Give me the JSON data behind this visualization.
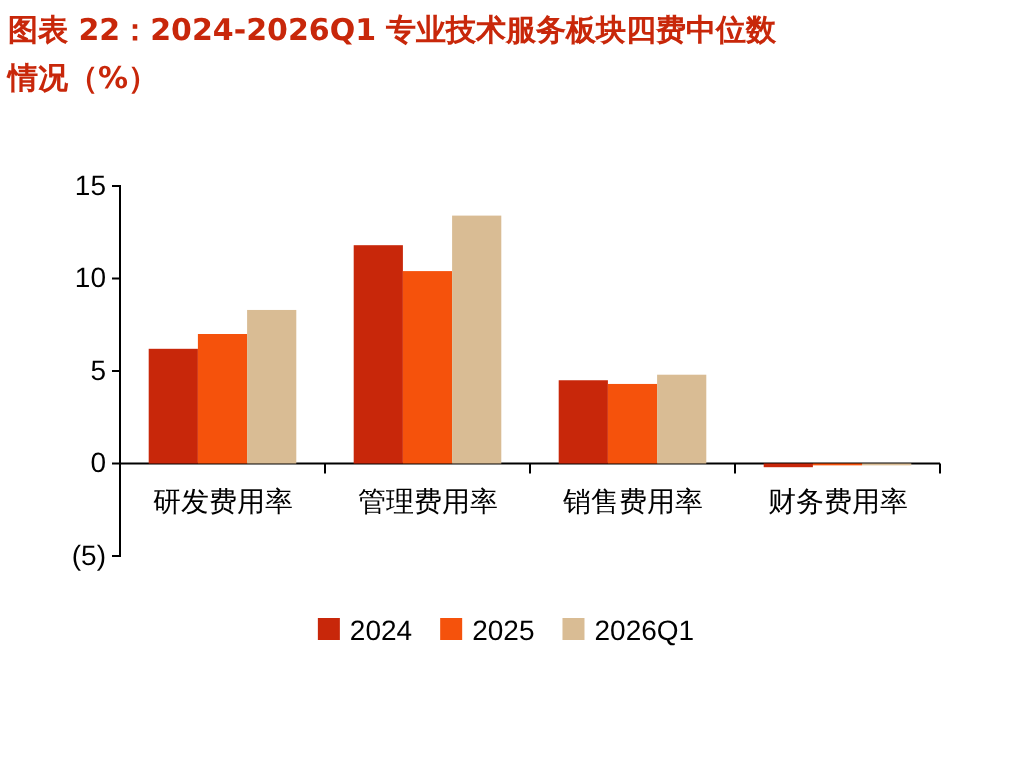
{
  "chart_data": {
    "type": "bar",
    "title": "图表 22：2024-2026Q1 专业技术服务板块四费中位数情况（%）",
    "categories": [
      "研发费用率",
      "管理费用率",
      "销售费用率",
      "财务费用率"
    ],
    "series": [
      {
        "name": "2024",
        "color": "#c8270a",
        "values": [
          6.2,
          11.8,
          4.5,
          -0.2
        ]
      },
      {
        "name": "2025",
        "color": "#f5520c",
        "values": [
          7.0,
          10.4,
          4.3,
          -0.1
        ]
      },
      {
        "name": "2026Q1",
        "color": "#d9bc94",
        "values": [
          8.3,
          13.4,
          4.8,
          -0.1
        ]
      }
    ],
    "ylim": [
      -5,
      15
    ],
    "yticks": [
      {
        "value": -5,
        "label": "(5)"
      },
      0,
      5,
      10,
      15
    ],
    "grid": false,
    "legend": "bottom"
  }
}
